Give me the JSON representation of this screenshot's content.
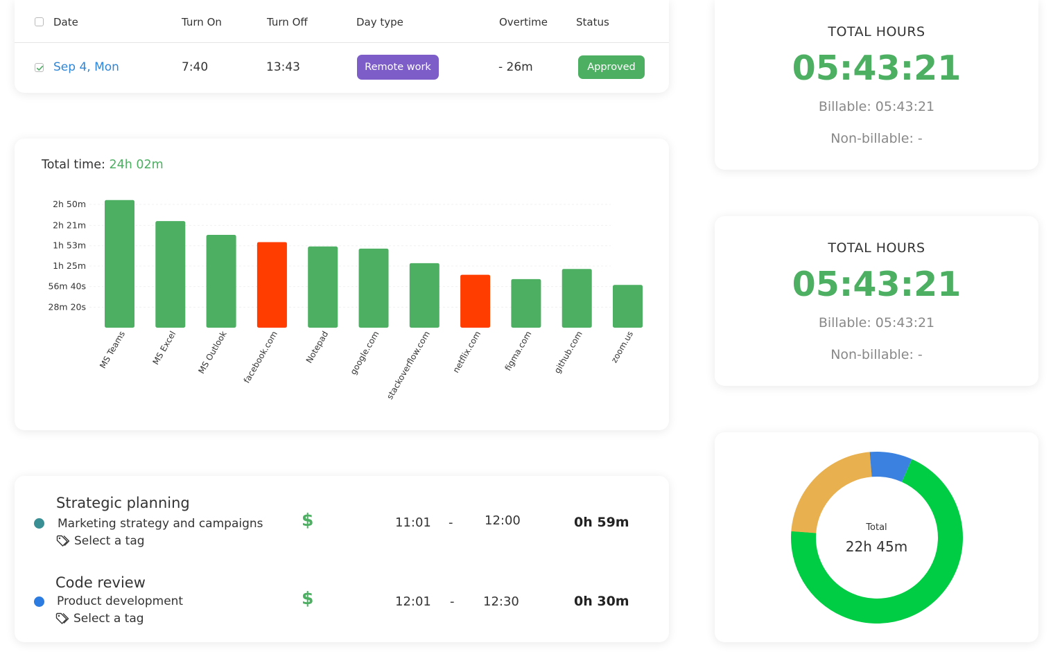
{
  "attendance": {
    "headers": {
      "date": "Date",
      "turn_on": "Turn On",
      "turn_off": "Turn Off",
      "day_type": "Day type",
      "overtime": "Overtime",
      "status": "Status"
    },
    "rows": [
      {
        "date": "Sep 4, Mon",
        "turn_on": "7:40",
        "turn_off": "13:43",
        "day_type": "Remote work",
        "overtime": "- 26m",
        "status": "Approved",
        "checked": true
      }
    ],
    "colors": {
      "day_type": "#7d5ec8",
      "status": "#4caf62",
      "date_link": "#2f86d6"
    }
  },
  "activity": {
    "total_label": "Total time:",
    "total_value": "24h 02m"
  },
  "chart_data": {
    "type": "bar",
    "categories": [
      "MS Teams",
      "MS Excel",
      "MS Outlook",
      "facebook.com",
      "Notepad",
      "google.com",
      "stackoverflow.com",
      "netflix.com",
      "figma.com",
      "github.com",
      "zoom.us"
    ],
    "values_minutes": [
      176,
      147,
      128,
      118,
      112,
      109,
      89,
      73,
      67,
      81,
      59
    ],
    "unit": "minutes",
    "y_ticks_minutes": [
      28.33,
      56.67,
      85,
      113,
      141,
      170
    ],
    "y_tick_labels": [
      "28m 20s",
      "56m 40s",
      "1h 25m",
      "1h 53m",
      "2h 21m",
      "2h 50m"
    ],
    "ylim_minutes": [
      0,
      180
    ],
    "bar_colors": [
      "#4caf62",
      "#4caf62",
      "#4caf62",
      "#ff3d00",
      "#4caf62",
      "#4caf62",
      "#4caf62",
      "#ff3d00",
      "#4caf62",
      "#4caf62",
      "#4caf62"
    ],
    "grid": true
  },
  "timesheet": {
    "entries": [
      {
        "title": "Strategic planning",
        "project": "Marketing strategy and campaigns",
        "tag": "Select a tag",
        "billable_symbol": "$",
        "start": "11:01",
        "separator": "-",
        "end": "12:00",
        "duration": "0h 59m",
        "dot_color": "#3a8f94"
      },
      {
        "title": "Code review",
        "project": "Product development",
        "tag": "Select a tag",
        "billable_symbol": "$",
        "start": "12:01",
        "separator": "-",
        "end": "12:30",
        "duration": "0h 30m",
        "dot_color": "#2b7be0"
      }
    ],
    "icons": {
      "tag": "tag-icon"
    }
  },
  "totals": [
    {
      "label": "TOTAL HOURS",
      "value": "05:43:21",
      "billable": "Billable: 05:43:21",
      "non_billable": "Non-billable: -"
    },
    {
      "label": "TOTAL HOURS",
      "value": "05:43:21",
      "billable": "Billable: 05:43:21",
      "non_billable": "Non-billable: -"
    }
  ],
  "donut": {
    "label": "Total",
    "value": "22h 45m",
    "segments": [
      {
        "fraction": 0.695,
        "color": "#00cc44"
      },
      {
        "fraction": 0.225,
        "color": "#e8b04f"
      },
      {
        "fraction": 0.08,
        "color": "#3b82e0"
      }
    ]
  }
}
